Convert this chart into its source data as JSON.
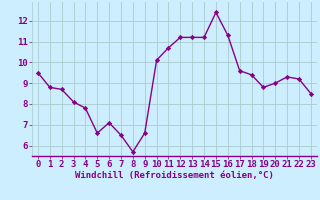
{
  "x": [
    0,
    1,
    2,
    3,
    4,
    5,
    6,
    7,
    8,
    9,
    10,
    11,
    12,
    13,
    14,
    15,
    16,
    17,
    18,
    19,
    20,
    21,
    22,
    23
  ],
  "y": [
    9.5,
    8.8,
    8.7,
    8.1,
    7.8,
    6.6,
    7.1,
    6.5,
    5.7,
    6.6,
    10.1,
    10.7,
    11.2,
    11.2,
    11.2,
    12.4,
    11.3,
    9.6,
    9.4,
    8.8,
    9.0,
    9.3,
    9.2,
    8.5
  ],
  "line_color": "#880088",
  "marker": "D",
  "marker_size": 2.2,
  "line_width": 1.0,
  "bg_color": "#cceeff",
  "grid_color": "#aacccc",
  "xlabel": "Windchill (Refroidissement éolien,°C)",
  "xlabel_fontsize": 6.5,
  "tick_fontsize": 6.5,
  "ylim": [
    5.5,
    12.9
  ],
  "yticks": [
    6,
    7,
    8,
    9,
    10,
    11,
    12
  ],
  "xticks": [
    0,
    1,
    2,
    3,
    4,
    5,
    6,
    7,
    8,
    9,
    10,
    11,
    12,
    13,
    14,
    15,
    16,
    17,
    18,
    19,
    20,
    21,
    22,
    23
  ],
  "fig_width": 3.2,
  "fig_height": 2.0,
  "dpi": 100
}
